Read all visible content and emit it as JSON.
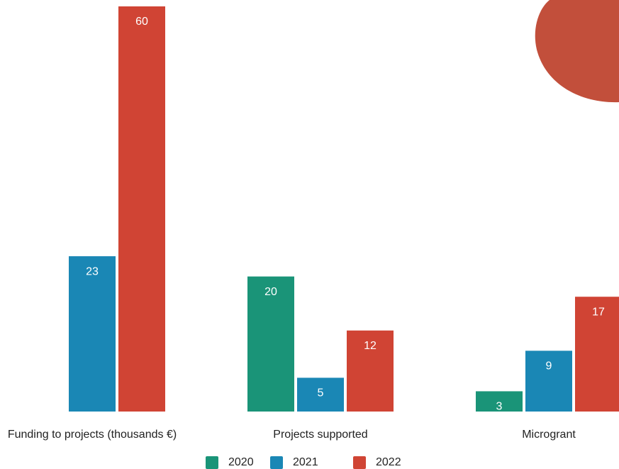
{
  "chart_data": {
    "type": "bar",
    "categories": [
      "Funding to projects (thousands €)",
      "Projects supported",
      "Microgrant"
    ],
    "series": [
      {
        "name": "2020",
        "color": "#1a9478",
        "values": [
          null,
          20,
          3
        ]
      },
      {
        "name": "2021",
        "color": "#1a87b5",
        "values": [
          23,
          5,
          9
        ]
      },
      {
        "name": "2022",
        "color": "#d04434",
        "values": [
          60,
          12,
          17
        ]
      }
    ]
  }
}
